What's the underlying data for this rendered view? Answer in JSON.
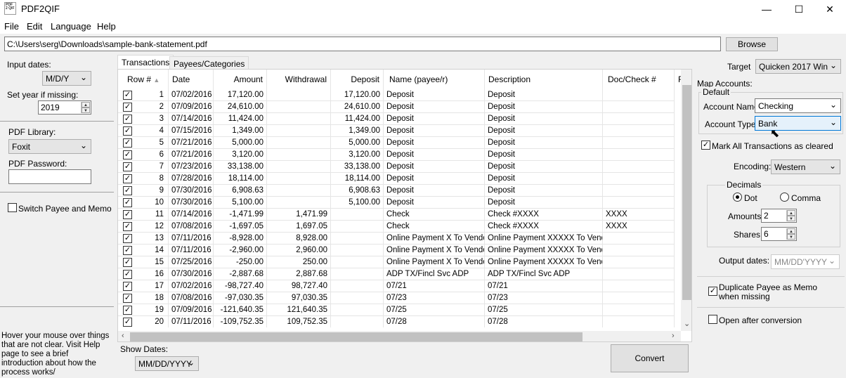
{
  "window": {
    "title": "PDF2QIF",
    "icon_text": "PDF 2 QIF"
  },
  "window_controls": {
    "minimize": "—",
    "maximize": "☐",
    "close": "✕"
  },
  "menu": [
    "File",
    "Edit",
    "Language",
    "Help"
  ],
  "path": {
    "value": "C:\\Users\\serg\\Downloads\\sample-bank-statement.pdf",
    "browse_label": "Browse"
  },
  "left": {
    "input_dates_label": "Input dates:",
    "input_dates_value": "M/D/Y",
    "set_year_label": "Set year if missing:",
    "set_year_value": "2019",
    "pdf_library_label": "PDF Library:",
    "pdf_library_value": "Foxit",
    "pdf_password_label": "PDF Password:",
    "pdf_password_value": "",
    "switch_payee_label": "Switch Payee and Memo",
    "help_text": "Hover your mouse over things that are not clear. Visit Help page to see a brief introduction about how the process works/"
  },
  "tabs": [
    "Transactions",
    "Payees/Categories"
  ],
  "grid": {
    "columns": [
      "Row #",
      "Date",
      "Amount",
      "Withdrawal",
      "Deposit",
      "Name (payee/r)",
      "Description",
      "Doc/Check #",
      "F"
    ],
    "rows": [
      [
        "1",
        "07/02/2016",
        "17,120.00",
        "",
        "17,120.00",
        "Deposit",
        "Deposit",
        ""
      ],
      [
        "2",
        "07/09/2016",
        "24,610.00",
        "",
        "24,610.00",
        "Deposit",
        "Deposit",
        ""
      ],
      [
        "3",
        "07/14/2016",
        "11,424.00",
        "",
        "11,424.00",
        "Deposit",
        "Deposit",
        ""
      ],
      [
        "4",
        "07/15/2016",
        "1,349.00",
        "",
        "1,349.00",
        "Deposit",
        "Deposit",
        ""
      ],
      [
        "5",
        "07/21/2016",
        "5,000.00",
        "",
        "5,000.00",
        "Deposit",
        "Deposit",
        ""
      ],
      [
        "6",
        "07/21/2016",
        "3,120.00",
        "",
        "3,120.00",
        "Deposit",
        "Deposit",
        ""
      ],
      [
        "7",
        "07/23/2016",
        "33,138.00",
        "",
        "33,138.00",
        "Deposit",
        "Deposit",
        ""
      ],
      [
        "8",
        "07/28/2016",
        "18,114.00",
        "",
        "18,114.00",
        "Deposit",
        "Deposit",
        ""
      ],
      [
        "9",
        "07/30/2016",
        "6,908.63",
        "",
        "6,908.63",
        "Deposit",
        "Deposit",
        ""
      ],
      [
        "10",
        "07/30/2016",
        "5,100.00",
        "",
        "5,100.00",
        "Deposit",
        "Deposit",
        ""
      ],
      [
        "11",
        "07/14/2016",
        "-1,471.99",
        "1,471.99",
        "",
        "Check",
        "Check #XXXX",
        "XXXX"
      ],
      [
        "12",
        "07/08/2016",
        "-1,697.05",
        "1,697.05",
        "",
        "Check",
        "Check #XXXX",
        "XXXX"
      ],
      [
        "13",
        "07/11/2016",
        "-8,928.00",
        "8,928.00",
        "",
        "Online Payment X To Vendor",
        "Online Payment XXXXX To Vendor",
        ""
      ],
      [
        "14",
        "07/11/2016",
        "-2,960.00",
        "2,960.00",
        "",
        "Online Payment X To Vendor",
        "Online Payment XXXXX To Vendor",
        ""
      ],
      [
        "15",
        "07/25/2016",
        "-250.00",
        "250.00",
        "",
        "Online Payment X To Vendor",
        "Online Payment XXXXX To Vendor",
        ""
      ],
      [
        "16",
        "07/30/2016",
        "-2,887.68",
        "2,887.68",
        "",
        "ADP TX/Fincl Svc ADP",
        "ADP TX/Fincl Svc ADP",
        ""
      ],
      [
        "17",
        "07/02/2016",
        "-98,727.40",
        "98,727.40",
        "",
        "07/21",
        "07/21",
        ""
      ],
      [
        "18",
        "07/08/2016",
        "-97,030.35",
        "97,030.35",
        "",
        "07/23",
        "07/23",
        ""
      ],
      [
        "19",
        "07/09/2016",
        "-121,640.35",
        "121,640.35",
        "",
        "07/25",
        "07/25",
        ""
      ],
      [
        "20",
        "07/11/2016",
        "-109,752.35",
        "109,752.35",
        "",
        "07/28",
        "07/28",
        ""
      ]
    ]
  },
  "bottom": {
    "show_dates_label": "Show Dates:",
    "show_dates_value": "MM/DD/YYYY",
    "convert_label": "Convert"
  },
  "right": {
    "target_label": "Target",
    "target_value": "Quicken 2017 Win",
    "map_accounts_label": "Map Accounts:",
    "default_label": "Default",
    "account_name_label": "Account Name:",
    "account_name_value": "Checking",
    "account_type_label": "Account Type:",
    "account_type_value": "Bank",
    "mark_cleared_label": "Mark All Transactions as cleared",
    "encoding_label": "Encoding:",
    "encoding_value": "Western",
    "decimals_label": "Decimals",
    "dot_label": "Dot",
    "comma_label": "Comma",
    "amounts_label": "Amounts",
    "amounts_value": "2",
    "shares_label": "Shares",
    "shares_value": "6",
    "output_dates_label": "Output dates:",
    "output_dates_value": "MM/DD'YYYY",
    "duplicate_payee_label": "Duplicate Payee as Memo when missing",
    "open_after_label": "Open after conversion"
  }
}
